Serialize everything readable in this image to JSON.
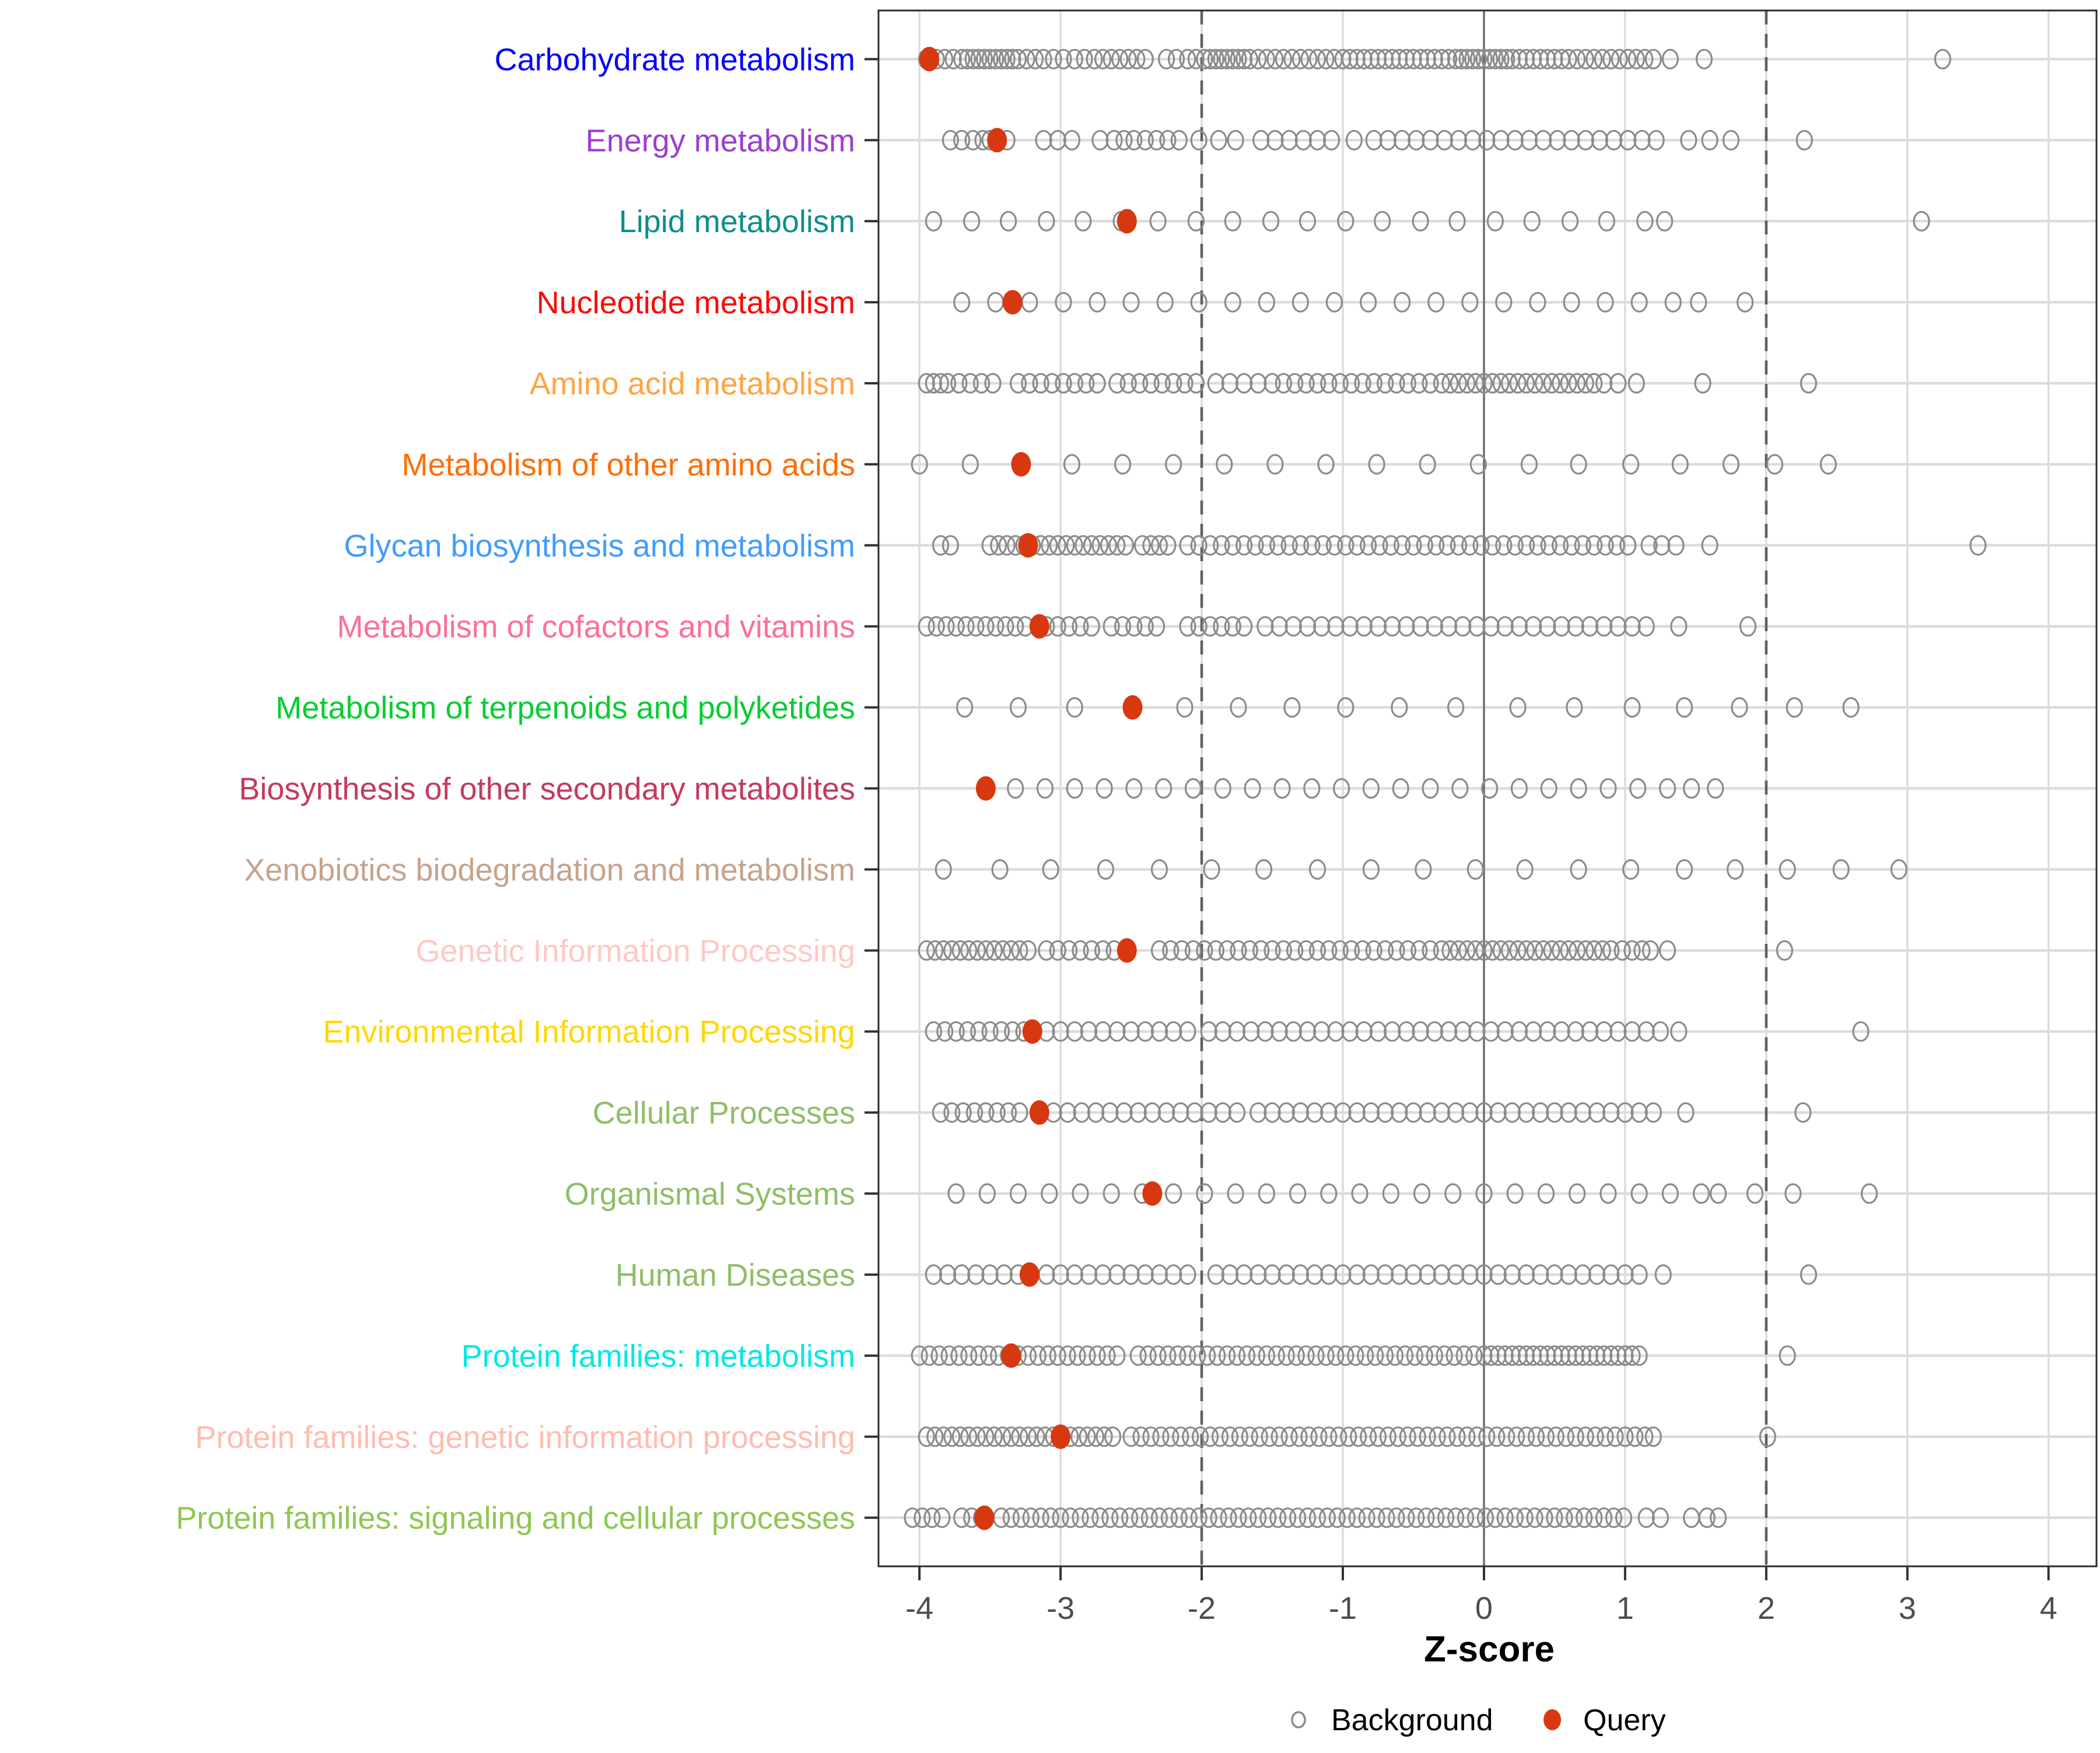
{
  "chart_data": {
    "type": "scatter",
    "subtype": "strip-dot-plot",
    "title": "",
    "xlabel": "Z-score",
    "ylabel": "",
    "xlim": [
      -4.29,
      4.34
    ],
    "x_ticks": [
      -4,
      -3,
      -2,
      -1,
      0,
      1,
      2,
      3,
      4
    ],
    "grid": true,
    "reference_lines": {
      "solid": [
        0
      ],
      "dashed": [
        -2,
        2
      ]
    },
    "legend_position": "bottom",
    "legend": [
      {
        "label": "Background",
        "marker": "open-circle",
        "color": "#8B8B8B"
      },
      {
        "label": "Query",
        "marker": "filled-circle",
        "color": "#D8380F"
      }
    ],
    "point_style": {
      "background_stroke": "#8B8B8B",
      "query_fill": "#D8380F"
    },
    "categories": [
      {
        "label": "Carbohydrate metabolism",
        "color": "#0000FE",
        "query": -3.93,
        "background": [
          -3.95,
          -3.88,
          -3.82,
          -3.76,
          -3.7,
          -3.66,
          -3.62,
          -3.58,
          -3.54,
          -3.5,
          -3.46,
          -3.42,
          -3.38,
          -3.34,
          -3.3,
          -3.24,
          -3.18,
          -3.12,
          -3.05,
          -2.98,
          -2.9,
          -2.83,
          -2.76,
          -2.7,
          -2.64,
          -2.58,
          -2.52,
          -2.46,
          -2.4,
          -2.25,
          -2.18,
          -2.1,
          -2.04,
          -1.98,
          -1.94,
          -1.9,
          -1.86,
          -1.82,
          -1.78,
          -1.74,
          -1.7,
          -1.66,
          -1.6,
          -1.54,
          -1.48,
          -1.42,
          -1.36,
          -1.3,
          -1.24,
          -1.18,
          -1.12,
          -1.06,
          -1.0,
          -0.95,
          -0.9,
          -0.85,
          -0.8,
          -0.75,
          -0.7,
          -0.65,
          -0.6,
          -0.55,
          -0.5,
          -0.45,
          -0.4,
          -0.35,
          -0.3,
          -0.25,
          -0.2,
          -0.16,
          -0.12,
          -0.08,
          -0.04,
          0.0,
          0.04,
          0.08,
          0.12,
          0.16,
          0.2,
          0.25,
          0.3,
          0.35,
          0.4,
          0.45,
          0.5,
          0.55,
          0.6,
          0.66,
          0.72,
          0.78,
          0.84,
          0.9,
          0.96,
          1.02,
          1.08,
          1.14,
          1.2,
          1.32,
          1.56,
          3.25
        ]
      },
      {
        "label": "Energy metabolism",
        "color": "#9B3ED1",
        "query": -3.45,
        "background": [
          -3.78,
          -3.7,
          -3.62,
          -3.55,
          -3.5,
          -3.45,
          -3.38,
          -3.12,
          -3.02,
          -2.92,
          -2.72,
          -2.62,
          -2.55,
          -2.48,
          -2.4,
          -2.32,
          -2.24,
          -2.16,
          -2.02,
          -1.88,
          -1.76,
          -1.58,
          -1.48,
          -1.38,
          -1.28,
          -1.18,
          -1.08,
          -0.92,
          -0.78,
          -0.68,
          -0.58,
          -0.48,
          -0.38,
          -0.28,
          -0.18,
          -0.08,
          0.02,
          0.12,
          0.22,
          0.32,
          0.42,
          0.52,
          0.62,
          0.72,
          0.82,
          0.92,
          1.02,
          1.12,
          1.22,
          1.45,
          1.6,
          1.75,
          2.27
        ]
      },
      {
        "label": "Lipid metabolism",
        "color": "#0E8E8B",
        "query": -2.53,
        "background": [
          -3.9,
          -3.63,
          -3.37,
          -3.1,
          -2.84,
          -2.57,
          -2.31,
          -2.04,
          -1.78,
          -1.51,
          -1.25,
          -0.98,
          -0.72,
          -0.45,
          -0.19,
          0.08,
          0.34,
          0.61,
          0.87,
          1.14,
          1.28,
          3.1
        ]
      },
      {
        "label": "Nucleotide metabolism",
        "color": "#FC0800",
        "query": -3.34,
        "background": [
          -3.7,
          -3.46,
          -3.22,
          -2.98,
          -2.74,
          -2.5,
          -2.26,
          -2.02,
          -1.78,
          -1.54,
          -1.3,
          -1.06,
          -0.82,
          -0.58,
          -0.34,
          -0.1,
          0.14,
          0.38,
          0.62,
          0.86,
          1.1,
          1.34,
          1.52,
          1.85
        ]
      },
      {
        "label": "Amino acid metabolism",
        "color": "#FFA442",
        "query": null,
        "background": [
          -3.95,
          -3.9,
          -3.85,
          -3.8,
          -3.72,
          -3.64,
          -3.56,
          -3.48,
          -3.3,
          -3.22,
          -3.14,
          -3.06,
          -2.98,
          -2.9,
          -2.82,
          -2.74,
          -2.6,
          -2.52,
          -2.44,
          -2.36,
          -2.28,
          -2.2,
          -2.12,
          -2.04,
          -1.9,
          -1.8,
          -1.7,
          -1.6,
          -1.5,
          -1.42,
          -1.34,
          -1.26,
          -1.18,
          -1.1,
          -1.02,
          -0.94,
          -0.86,
          -0.78,
          -0.7,
          -0.62,
          -0.54,
          -0.46,
          -0.38,
          -0.3,
          -0.24,
          -0.18,
          -0.12,
          -0.06,
          0.0,
          0.06,
          0.12,
          0.18,
          0.24,
          0.3,
          0.36,
          0.42,
          0.48,
          0.54,
          0.6,
          0.66,
          0.72,
          0.78,
          0.85,
          0.95,
          1.08,
          1.55,
          2.3
        ]
      },
      {
        "label": "Metabolism of other amino acids",
        "color": "#FF6D05",
        "query": -3.28,
        "background": [
          -4.0,
          -3.64,
          -2.92,
          -2.56,
          -2.2,
          -1.84,
          -1.48,
          -1.12,
          -0.76,
          -0.4,
          -0.04,
          0.32,
          0.67,
          1.04,
          1.39,
          1.75,
          2.06,
          2.44
        ]
      },
      {
        "label": "Glycan biosynthesis and metabolism",
        "color": "#419CFE",
        "query": -3.23,
        "background": [
          -3.85,
          -3.78,
          -3.5,
          -3.44,
          -3.38,
          -3.32,
          -3.26,
          -3.2,
          -3.14,
          -3.08,
          -3.02,
          -2.96,
          -2.9,
          -2.84,
          -2.78,
          -2.72,
          -2.66,
          -2.6,
          -2.54,
          -2.42,
          -2.36,
          -2.3,
          -2.24,
          -2.1,
          -2.02,
          -1.94,
          -1.86,
          -1.78,
          -1.7,
          -1.62,
          -1.54,
          -1.46,
          -1.38,
          -1.3,
          -1.22,
          -1.14,
          -1.06,
          -0.98,
          -0.9,
          -0.82,
          -0.74,
          -0.66,
          -0.58,
          -0.5,
          -0.42,
          -0.34,
          -0.26,
          -0.18,
          -0.1,
          -0.02,
          0.06,
          0.14,
          0.22,
          0.3,
          0.38,
          0.46,
          0.54,
          0.62,
          0.7,
          0.78,
          0.86,
          0.94,
          1.02,
          1.17,
          1.26,
          1.36,
          1.6,
          3.5
        ]
      },
      {
        "label": "Metabolism of cofactors and vitamins",
        "color": "#FF6E94",
        "query": -3.15,
        "background": [
          -3.95,
          -3.88,
          -3.81,
          -3.74,
          -3.67,
          -3.6,
          -3.53,
          -3.46,
          -3.39,
          -3.32,
          -3.25,
          -3.1,
          -3.02,
          -2.94,
          -2.86,
          -2.78,
          -2.64,
          -2.56,
          -2.48,
          -2.4,
          -2.32,
          -2.1,
          -2.02,
          -1.94,
          -1.86,
          -1.78,
          -1.7,
          -1.55,
          -1.45,
          -1.35,
          -1.25,
          -1.15,
          -1.05,
          -0.95,
          -0.85,
          -0.75,
          -0.65,
          -0.55,
          -0.45,
          -0.35,
          -0.25,
          -0.15,
          -0.05,
          0.05,
          0.15,
          0.25,
          0.35,
          0.45,
          0.55,
          0.65,
          0.75,
          0.85,
          0.95,
          1.05,
          1.15,
          1.38,
          1.87
        ]
      },
      {
        "label": "Metabolism of terpenoids and polyketides",
        "color": "#06CD31",
        "query": -2.49,
        "background": [
          -3.68,
          -3.3,
          -2.9,
          -2.12,
          -1.74,
          -1.36,
          -0.98,
          -0.6,
          -0.2,
          0.24,
          0.64,
          1.05,
          1.42,
          1.81,
          2.2,
          2.6
        ]
      },
      {
        "label": "Biosynthesis of other secondary metabolites",
        "color": "#C43A5F",
        "query": -3.53,
        "background": [
          -3.32,
          -3.11,
          -2.9,
          -2.69,
          -2.48,
          -2.27,
          -2.06,
          -1.85,
          -1.64,
          -1.43,
          -1.22,
          -1.01,
          -0.8,
          -0.59,
          -0.38,
          -0.17,
          0.04,
          0.25,
          0.46,
          0.67,
          0.88,
          1.09,
          1.3,
          1.47,
          1.64
        ]
      },
      {
        "label": "Xenobiotics biodegradation and metabolism",
        "color": "#C6A38D",
        "query": null,
        "background": [
          -3.83,
          -3.43,
          -3.07,
          -2.68,
          -2.3,
          -1.93,
          -1.56,
          -1.18,
          -0.8,
          -0.43,
          -0.06,
          0.29,
          0.67,
          1.04,
          1.42,
          1.78,
          2.15,
          2.53,
          2.94
        ]
      },
      {
        "label": "Genetic Information Processing",
        "color": "#FFC9C4",
        "query": -2.53,
        "background": [
          -3.95,
          -3.89,
          -3.83,
          -3.77,
          -3.71,
          -3.65,
          -3.59,
          -3.53,
          -3.47,
          -3.41,
          -3.35,
          -3.29,
          -3.23,
          -3.1,
          -3.02,
          -2.94,
          -2.86,
          -2.78,
          -2.7,
          -2.62,
          -2.54,
          -2.3,
          -2.22,
          -2.14,
          -2.06,
          -1.98,
          -1.9,
          -1.82,
          -1.74,
          -1.66,
          -1.58,
          -1.5,
          -1.42,
          -1.34,
          -1.26,
          -1.18,
          -1.1,
          -1.02,
          -0.94,
          -0.86,
          -0.78,
          -0.7,
          -0.62,
          -0.54,
          -0.46,
          -0.38,
          -0.3,
          -0.24,
          -0.18,
          -0.12,
          -0.06,
          0.0,
          0.06,
          0.12,
          0.18,
          0.24,
          0.3,
          0.36,
          0.42,
          0.48,
          0.54,
          0.6,
          0.66,
          0.72,
          0.78,
          0.84,
          0.9,
          0.98,
          1.05,
          1.12,
          1.18,
          1.3,
          2.13
        ]
      },
      {
        "label": "Environmental Information Processing",
        "color": "#FFD703",
        "query": -3.2,
        "background": [
          -3.9,
          -3.82,
          -3.74,
          -3.66,
          -3.58,
          -3.5,
          -3.42,
          -3.34,
          -3.26,
          -3.1,
          -3.0,
          -2.9,
          -2.8,
          -2.7,
          -2.6,
          -2.5,
          -2.4,
          -2.3,
          -2.2,
          -2.1,
          -1.95,
          -1.85,
          -1.75,
          -1.65,
          -1.55,
          -1.45,
          -1.35,
          -1.25,
          -1.15,
          -1.05,
          -0.95,
          -0.85,
          -0.75,
          -0.65,
          -0.55,
          -0.45,
          -0.35,
          -0.25,
          -0.15,
          -0.05,
          0.05,
          0.15,
          0.25,
          0.35,
          0.45,
          0.55,
          0.65,
          0.75,
          0.85,
          0.95,
          1.05,
          1.15,
          1.25,
          1.38,
          2.67
        ]
      },
      {
        "label": "Cellular Processes",
        "color": "#8FBD68",
        "query": -3.15,
        "background": [
          -3.85,
          -3.77,
          -3.69,
          -3.61,
          -3.53,
          -3.45,
          -3.37,
          -3.29,
          -3.05,
          -2.95,
          -2.85,
          -2.75,
          -2.65,
          -2.55,
          -2.45,
          -2.35,
          -2.25,
          -2.15,
          -2.05,
          -1.95,
          -1.85,
          -1.75,
          -1.6,
          -1.5,
          -1.4,
          -1.3,
          -1.2,
          -1.1,
          -1.0,
          -0.9,
          -0.8,
          -0.7,
          -0.6,
          -0.5,
          -0.4,
          -0.3,
          -0.2,
          -0.1,
          0.0,
          0.1,
          0.2,
          0.3,
          0.4,
          0.5,
          0.6,
          0.7,
          0.8,
          0.9,
          1.0,
          1.1,
          1.2,
          1.43,
          2.26
        ]
      },
      {
        "label": "Organismal Systems",
        "color": "#8FBD68",
        "query": -2.35,
        "background": [
          -3.74,
          -3.52,
          -3.3,
          -3.08,
          -2.86,
          -2.64,
          -2.42,
          -2.2,
          -1.98,
          -1.76,
          -1.54,
          -1.32,
          -1.1,
          -0.88,
          -0.66,
          -0.44,
          -0.22,
          0.0,
          0.22,
          0.44,
          0.66,
          0.88,
          1.1,
          1.32,
          1.54,
          1.66,
          1.92,
          2.19,
          2.73
        ]
      },
      {
        "label": "Human Diseases",
        "color": "#8FBD68",
        "query": -3.22,
        "background": [
          -3.9,
          -3.8,
          -3.7,
          -3.6,
          -3.5,
          -3.4,
          -3.3,
          -3.1,
          -3.0,
          -2.9,
          -2.8,
          -2.7,
          -2.6,
          -2.5,
          -2.4,
          -2.3,
          -2.2,
          -2.1,
          -1.9,
          -1.8,
          -1.7,
          -1.6,
          -1.5,
          -1.4,
          -1.3,
          -1.2,
          -1.1,
          -1.0,
          -0.9,
          -0.8,
          -0.7,
          -0.6,
          -0.5,
          -0.4,
          -0.3,
          -0.2,
          -0.1,
          0.0,
          0.1,
          0.2,
          0.3,
          0.4,
          0.5,
          0.6,
          0.7,
          0.8,
          0.9,
          1.0,
          1.1,
          1.27,
          2.3
        ]
      },
      {
        "label": "Protein families: metabolism",
        "color": "#00E8E3",
        "query": -3.35,
        "background": [
          -4.0,
          -3.93,
          -3.86,
          -3.79,
          -3.72,
          -3.65,
          -3.58,
          -3.51,
          -3.44,
          -3.37,
          -3.3,
          -3.23,
          -3.16,
          -3.09,
          -3.02,
          -2.95,
          -2.88,
          -2.81,
          -2.74,
          -2.67,
          -2.6,
          -2.45,
          -2.38,
          -2.31,
          -2.24,
          -2.17,
          -2.1,
          -2.03,
          -1.96,
          -1.89,
          -1.82,
          -1.75,
          -1.68,
          -1.61,
          -1.54,
          -1.47,
          -1.4,
          -1.33,
          -1.26,
          -1.19,
          -1.12,
          -1.05,
          -0.98,
          -0.91,
          -0.84,
          -0.77,
          -0.7,
          -0.63,
          -0.56,
          -0.49,
          -0.42,
          -0.35,
          -0.28,
          -0.21,
          -0.14,
          -0.07,
          0.0,
          0.05,
          0.1,
          0.15,
          0.2,
          0.25,
          0.3,
          0.35,
          0.4,
          0.45,
          0.5,
          0.55,
          0.6,
          0.65,
          0.7,
          0.75,
          0.8,
          0.85,
          0.9,
          0.95,
          1.0,
          1.05,
          1.1,
          2.15
        ]
      },
      {
        "label": "Protein families: genetic information processing",
        "color": "#FFBCB0",
        "query": -3.0,
        "background": [
          -3.95,
          -3.89,
          -3.83,
          -3.77,
          -3.71,
          -3.65,
          -3.59,
          -3.53,
          -3.47,
          -3.41,
          -3.35,
          -3.29,
          -3.23,
          -3.17,
          -3.11,
          -3.05,
          -2.99,
          -2.93,
          -2.87,
          -2.81,
          -2.75,
          -2.69,
          -2.63,
          -2.5,
          -2.43,
          -2.36,
          -2.29,
          -2.22,
          -2.15,
          -2.08,
          -2.01,
          -1.94,
          -1.87,
          -1.8,
          -1.73,
          -1.66,
          -1.59,
          -1.52,
          -1.45,
          -1.38,
          -1.31,
          -1.24,
          -1.17,
          -1.1,
          -1.03,
          -0.96,
          -0.89,
          -0.82,
          -0.75,
          -0.68,
          -0.61,
          -0.54,
          -0.47,
          -0.4,
          -0.33,
          -0.26,
          -0.19,
          -0.12,
          -0.05,
          0.02,
          0.09,
          0.16,
          0.23,
          0.3,
          0.37,
          0.44,
          0.51,
          0.58,
          0.65,
          0.72,
          0.79,
          0.86,
          0.93,
          1.0,
          1.07,
          1.14,
          1.2,
          2.01
        ]
      },
      {
        "label": "Protein families: signaling and cellular processes",
        "color": "#90C653",
        "query": -3.54,
        "background": [
          -4.05,
          -3.98,
          -3.91,
          -3.84,
          -3.7,
          -3.63,
          -3.56,
          -3.42,
          -3.35,
          -3.28,
          -3.21,
          -3.14,
          -3.07,
          -3.0,
          -2.93,
          -2.86,
          -2.79,
          -2.72,
          -2.65,
          -2.58,
          -2.51,
          -2.44,
          -2.37,
          -2.3,
          -2.23,
          -2.16,
          -2.09,
          -2.02,
          -1.95,
          -1.88,
          -1.81,
          -1.74,
          -1.67,
          -1.6,
          -1.53,
          -1.46,
          -1.39,
          -1.32,
          -1.25,
          -1.18,
          -1.11,
          -1.04,
          -0.97,
          -0.9,
          -0.83,
          -0.76,
          -0.69,
          -0.62,
          -0.55,
          -0.48,
          -0.41,
          -0.34,
          -0.27,
          -0.2,
          -0.13,
          -0.06,
          0.01,
          0.08,
          0.15,
          0.22,
          0.29,
          0.36,
          0.43,
          0.5,
          0.57,
          0.64,
          0.71,
          0.78,
          0.85,
          0.92,
          0.99,
          1.15,
          1.25,
          1.47,
          1.58,
          1.66
        ]
      }
    ],
    "style_colors": {
      "gridline": "#DCDCDC",
      "zero_line": "#6F6F6F",
      "dashed_line": "#5E5E5E",
      "panel_border": "#2B2B2B",
      "tick": "#333333",
      "tick_label": "#4D4D4D",
      "axis_title": "#000000",
      "legend_text": "#000000"
    }
  }
}
